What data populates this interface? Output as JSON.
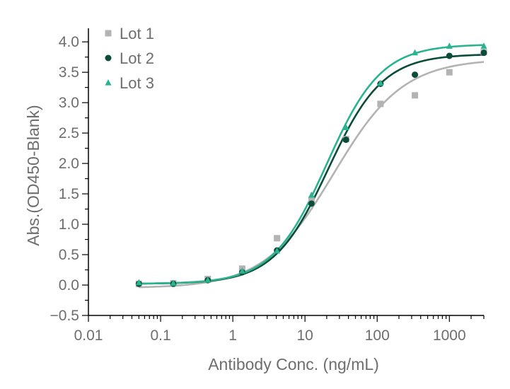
{
  "chart_data": {
    "type": "scatter",
    "title": "",
    "xlabel": "Antibody Conc. (ng/mL)",
    "ylabel": "Abs.(OD450-Blank)",
    "xscale": "log",
    "xlim": [
      0.01,
      3000
    ],
    "ylim": [
      -0.5,
      4.2
    ],
    "x_ticks": [
      0.01,
      0.1,
      1,
      10,
      100,
      1000
    ],
    "x_tick_labels": [
      "0.01",
      "0.1",
      "1",
      "10",
      "100",
      "1000"
    ],
    "y_ticks": [
      -0.5,
      0.0,
      0.5,
      1.0,
      1.5,
      2.0,
      2.5,
      3.0,
      3.5,
      4.0
    ],
    "y_tick_labels": [
      "−0.5",
      "0.0",
      "0.5",
      "1.0",
      "1.5",
      "2.0",
      "2.5",
      "3.0",
      "3.5",
      "4.0"
    ],
    "legend_position": "top-left",
    "series": [
      {
        "name": "Lot 1",
        "marker": "square",
        "color": "#b3b3b3",
        "x": [
          0.05,
          0.15,
          0.45,
          1.35,
          4.1,
          12.3,
          37,
          111,
          333,
          1000,
          3000
        ],
        "y": [
          0.02,
          0.03,
          0.1,
          0.27,
          0.77,
          1.4,
          2.4,
          2.98,
          3.12,
          3.5,
          3.83
        ],
        "fit": {
          "bottom": -0.05,
          "top": 3.72,
          "ec50": 25,
          "hill": 0.9
        }
      },
      {
        "name": "Lot 2",
        "marker": "circle",
        "color": "#0b4d3a",
        "x": [
          0.05,
          0.15,
          0.45,
          1.35,
          4.1,
          12.3,
          37,
          111,
          333,
          1000,
          3000
        ],
        "y": [
          0.02,
          0.02,
          0.08,
          0.21,
          0.57,
          1.34,
          2.39,
          3.31,
          3.46,
          3.77,
          3.82
        ],
        "fit": {
          "bottom": 0.02,
          "top": 3.8,
          "ec50": 21,
          "hill": 1.15
        }
      },
      {
        "name": "Lot 3",
        "marker": "triangle",
        "color": "#2ab390",
        "x": [
          0.05,
          0.15,
          0.45,
          1.35,
          4.1,
          12.3,
          37,
          111,
          333,
          1000,
          3000
        ],
        "y": [
          0.04,
          0.03,
          0.08,
          0.23,
          0.56,
          1.48,
          2.59,
          3.32,
          3.82,
          3.93,
          3.93
        ],
        "fit": {
          "bottom": 0.02,
          "top": 3.96,
          "ec50": 20,
          "hill": 1.15
        }
      }
    ]
  }
}
